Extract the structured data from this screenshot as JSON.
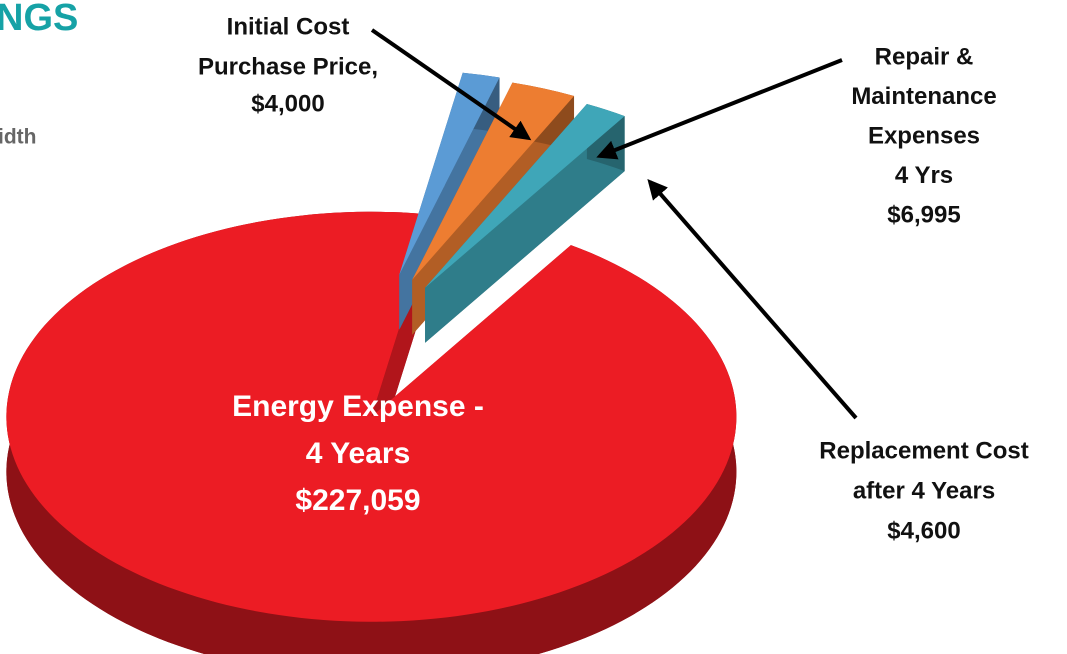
{
  "chart_data": {
    "type": "pie",
    "title": "NGS",
    "subtitle": "idth",
    "categories": [
      [
        "Initial Cost",
        "Purchase Price,"
      ],
      [
        "Repair &",
        "Maintenance",
        "Expenses",
        "4 Yrs"
      ],
      [
        "Replacement Cost",
        "after 4 Years"
      ],
      [
        "Energy Expense -",
        "4 Years"
      ]
    ],
    "values": [
      4000,
      6995,
      4600,
      227059
    ],
    "value_labels": [
      "$4,000",
      "$6,995",
      "$4,600",
      "$227,059"
    ],
    "colors": [
      "#5b9bd5",
      "#ed7d31",
      "#3fa6b8",
      "#ec1c24"
    ]
  }
}
